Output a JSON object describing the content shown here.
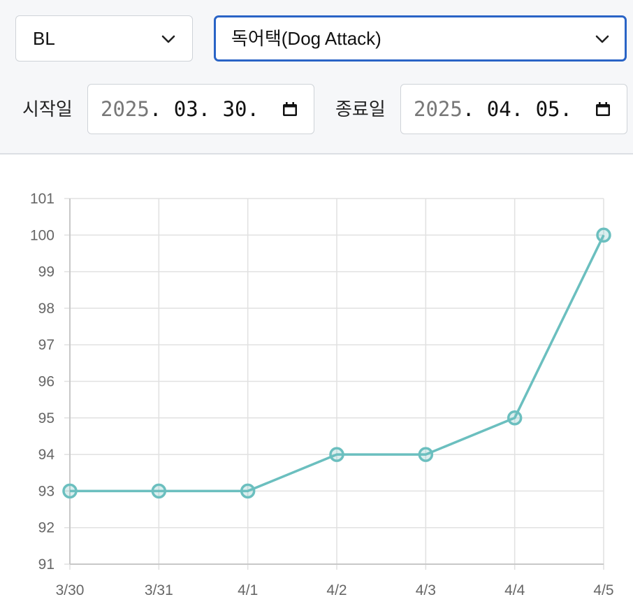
{
  "filters": {
    "left_select": {
      "value": "BL"
    },
    "right_select": {
      "value": "독어택(Dog Attack)"
    },
    "start": {
      "label": "시작일",
      "year": "2025",
      "rest": ". 03. 30."
    },
    "end": {
      "label": "종료일",
      "year": "2025",
      "rest": ". 04. 05."
    }
  },
  "icons": {
    "dropdown": "chevron-down-icon",
    "date": "calendar-icon"
  },
  "colors": {
    "line": "#6bbfbf",
    "accent": "#2a64c6"
  },
  "chart_data": {
    "type": "line",
    "categories": [
      "3/30",
      "3/31",
      "4/1",
      "4/2",
      "4/3",
      "4/4",
      "4/5"
    ],
    "series": [
      {
        "values": [
          93,
          93,
          93,
          94,
          94,
          95,
          100
        ]
      }
    ],
    "ylim": [
      91,
      101
    ],
    "yticks": [
      91,
      92,
      93,
      94,
      95,
      96,
      97,
      98,
      99,
      100,
      101
    ],
    "grid": true,
    "title": "",
    "xlabel": "",
    "ylabel": ""
  }
}
